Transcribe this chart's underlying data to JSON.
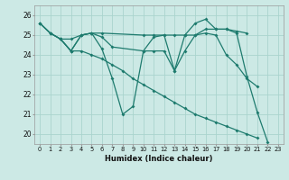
{
  "xlabel": "Humidex (Indice chaleur)",
  "xlim": [
    -0.5,
    23.5
  ],
  "ylim": [
    19.5,
    26.5
  ],
  "yticks": [
    20,
    21,
    22,
    23,
    24,
    25,
    26
  ],
  "xticks": [
    0,
    1,
    2,
    3,
    4,
    5,
    6,
    7,
    8,
    9,
    10,
    11,
    12,
    13,
    14,
    15,
    16,
    17,
    18,
    19,
    20,
    21,
    22,
    23
  ],
  "bg_color": "#cce9e5",
  "grid_color": "#aad4ce",
  "line_color": "#1e7b6e",
  "lines": [
    {
      "x": [
        0,
        1,
        2,
        3,
        4,
        5,
        6,
        7,
        8,
        9,
        10,
        11,
        12,
        13,
        14,
        15,
        16,
        17,
        18,
        19,
        20,
        21,
        22,
        23
      ],
      "y": [
        25.6,
        25.1,
        24.8,
        24.2,
        24.2,
        24.0,
        23.8,
        23.5,
        23.2,
        22.8,
        22.5,
        22.2,
        21.9,
        21.6,
        21.3,
        21.0,
        20.8,
        20.6,
        20.4,
        20.2,
        20.0,
        19.8,
        null,
        null
      ]
    },
    {
      "x": [
        0,
        1,
        2,
        3,
        4,
        5,
        6,
        7,
        8,
        9,
        10,
        11,
        12,
        13,
        14,
        15,
        16,
        17,
        18,
        19,
        20,
        21,
        22,
        23
      ],
      "y": [
        25.6,
        25.1,
        24.8,
        24.2,
        25.0,
        25.1,
        24.3,
        22.8,
        21.0,
        21.4,
        24.2,
        24.9,
        25.0,
        23.2,
        25.0,
        25.6,
        25.8,
        25.3,
        25.3,
        25.1,
        22.9,
        21.1,
        19.6,
        null
      ]
    },
    {
      "x": [
        0,
        1,
        2,
        3,
        4,
        5,
        6,
        10,
        11,
        12,
        13,
        14,
        15,
        16,
        17,
        18,
        19,
        20
      ],
      "y": [
        25.6,
        25.1,
        24.8,
        24.8,
        25.0,
        25.1,
        25.1,
        25.0,
        25.0,
        25.0,
        25.0,
        25.0,
        25.0,
        25.3,
        25.3,
        25.3,
        25.2,
        25.1
      ]
    },
    {
      "x": [
        2,
        3,
        4,
        5,
        6,
        7,
        10,
        11,
        12,
        13,
        14,
        15,
        16,
        17,
        18,
        19,
        20,
        21,
        22
      ],
      "y": [
        24.8,
        24.2,
        25.0,
        25.1,
        24.9,
        24.4,
        24.2,
        24.2,
        24.2,
        23.2,
        24.2,
        25.0,
        25.1,
        25.0,
        24.0,
        23.5,
        22.8,
        22.4,
        null
      ]
    }
  ]
}
